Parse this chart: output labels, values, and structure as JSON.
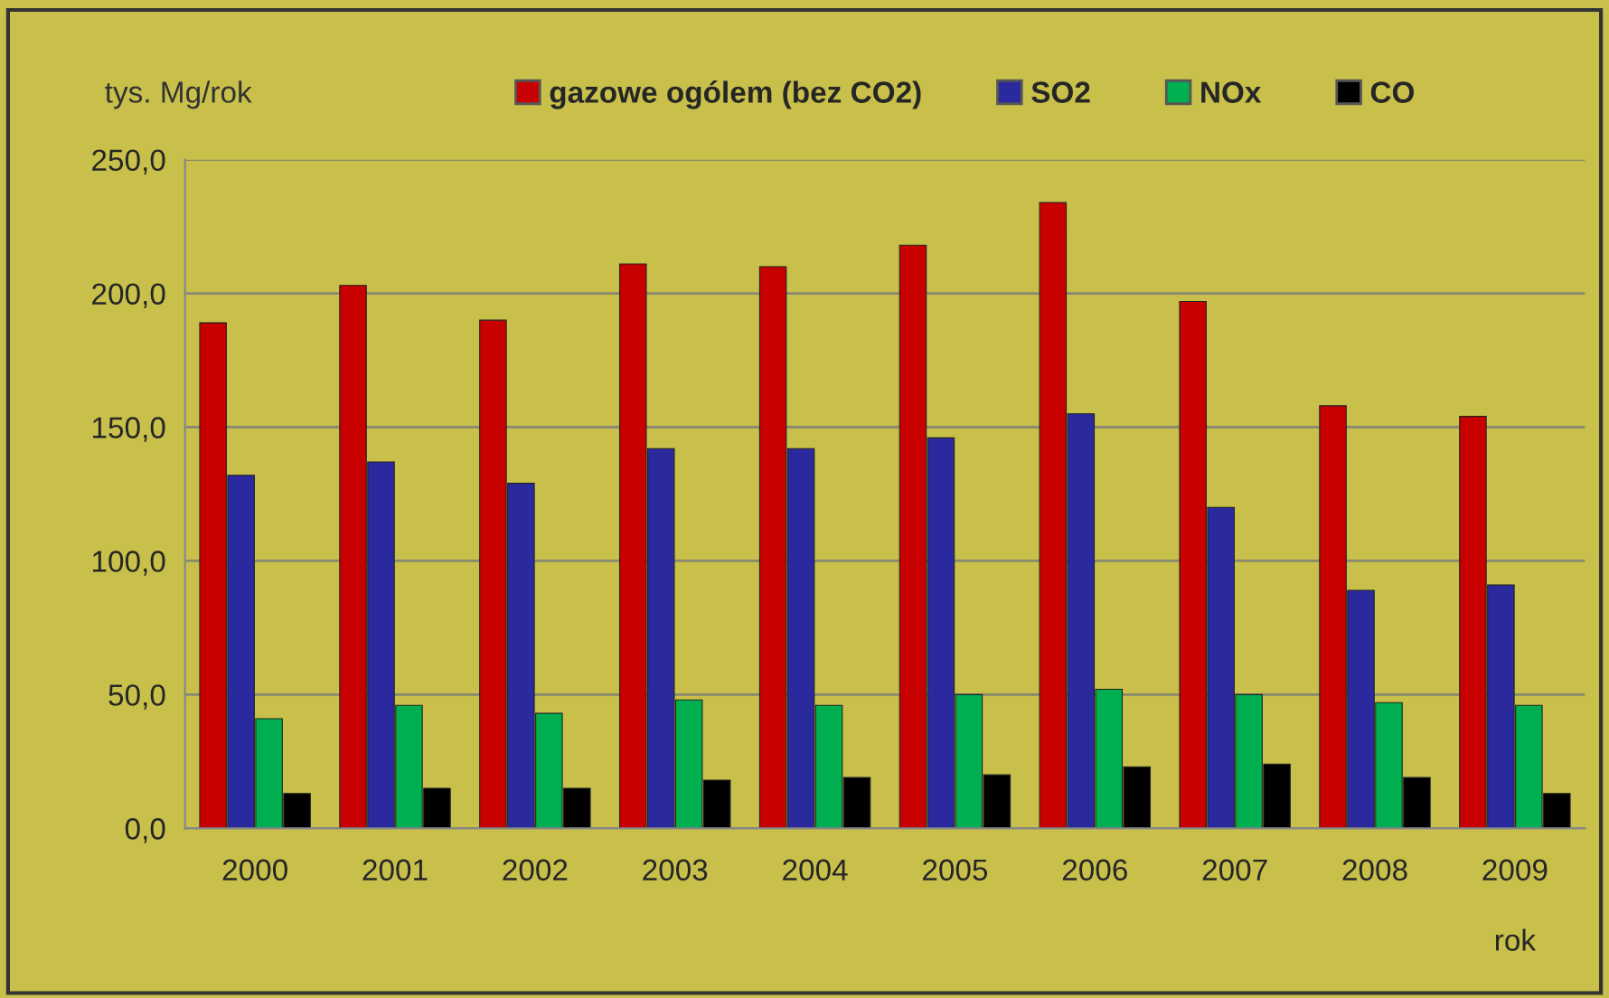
{
  "chart_data": {
    "type": "bar",
    "ylabel": "tys. Mg/rok",
    "xlabel": "rok",
    "categories": [
      "2000",
      "2001",
      "2002",
      "2003",
      "2004",
      "2005",
      "2006",
      "2007",
      "2008",
      "2009"
    ],
    "series": [
      {
        "name": "gazowe ogólem (bez CO2)",
        "color": "#c80000",
        "values": [
          189,
          203,
          190,
          211,
          210,
          218,
          234,
          197,
          158,
          154
        ]
      },
      {
        "name": "SO2",
        "color": "#2a2a9e",
        "values": [
          132,
          137,
          129,
          142,
          142,
          146,
          155,
          120,
          89,
          91
        ]
      },
      {
        "name": "NOx",
        "color": "#00b050",
        "values": [
          41,
          46,
          43,
          48,
          46,
          50,
          52,
          50,
          47,
          46
        ]
      },
      {
        "name": "CO",
        "color": "#000000",
        "values": [
          13,
          15,
          15,
          18,
          19,
          20,
          23,
          24,
          19,
          13
        ]
      }
    ],
    "ylim": [
      0,
      250
    ],
    "yticks": [
      {
        "value": 0,
        "label": "0,0"
      },
      {
        "value": 50,
        "label": "50,0"
      },
      {
        "value": 100,
        "label": "100,0"
      },
      {
        "value": 150,
        "label": "150,0"
      },
      {
        "value": 200,
        "label": "200,0"
      },
      {
        "value": 250,
        "label": "250,0"
      }
    ],
    "grid": "y",
    "legend": "top"
  }
}
